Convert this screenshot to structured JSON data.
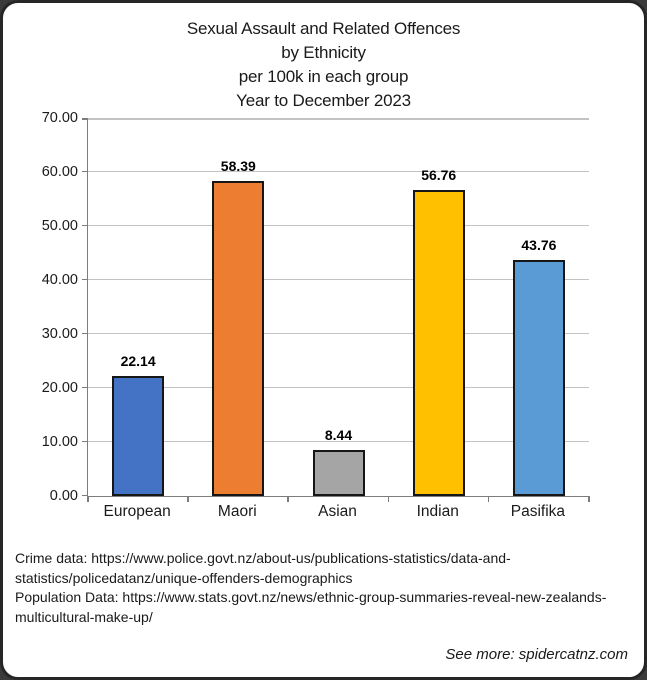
{
  "chart_data": {
    "type": "bar",
    "title": "Sexual Assault and Related Offences by Ethnicity per 100k in each group Year to December 2023",
    "title_lines": [
      "Sexual Assault and Related Offences",
      "by Ethnicity",
      "per 100k in each group",
      "Year to December 2023"
    ],
    "categories": [
      "European",
      "Maori",
      "Asian",
      "Indian",
      "Pasifika"
    ],
    "values": [
      22.14,
      58.39,
      8.44,
      56.76,
      43.76
    ],
    "value_labels": [
      "22.14",
      "58.39",
      "8.44",
      "56.76",
      "43.76"
    ],
    "bar_colors": [
      "#4472C4",
      "#ED7D31",
      "#A5A5A5",
      "#FFC000",
      "#5B9BD5"
    ],
    "xlabel": "",
    "ylabel": "",
    "ylim": [
      0,
      70
    ],
    "ytick_step": 10,
    "ytick_labels": [
      "0.00",
      "10.00",
      "20.00",
      "30.00",
      "40.00",
      "50.00",
      "60.00",
      "70.00"
    ],
    "grid": true,
    "legend": false,
    "data_labels": true
  },
  "footer": {
    "sources": {
      "lines": [
        "Crime data: https://www.police.govt.nz/about-us/publications-statistics/data-and-",
        "statistics/policedatanz/unique-offenders-demographics",
        "Population Data: https://www.stats.govt.nz/news/ethnic-group-summaries-reveal-new-zealands-",
        "multicultural-make-up/"
      ]
    },
    "see_more": "See more: spidercatnz.com"
  }
}
